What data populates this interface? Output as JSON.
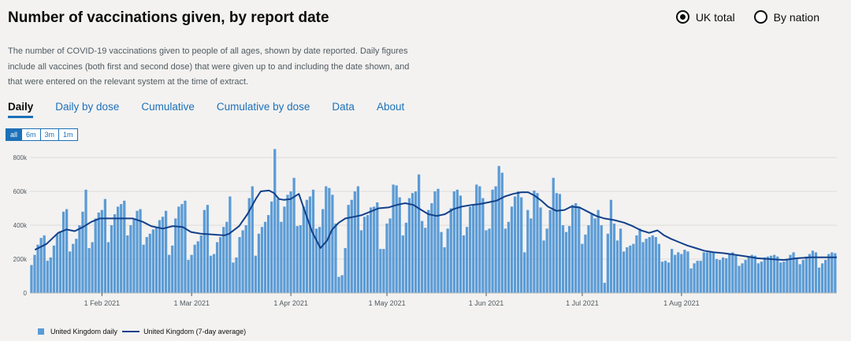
{
  "title": "Number of vaccinations given, by report date",
  "radios": [
    {
      "label": "UK total",
      "checked": true
    },
    {
      "label": "By nation",
      "checked": false
    }
  ],
  "description": "The number of COVID-19 vaccinations given to people of all ages, shown by date reported. Daily figures include all vaccines (both first and second dose) that were given up to and including the date shown, and that were entered on the relevant system at the time of extract.",
  "tabs": [
    {
      "label": "Daily",
      "active": true
    },
    {
      "label": "Daily by dose",
      "active": false
    },
    {
      "label": "Cumulative",
      "active": false
    },
    {
      "label": "Cumulative by dose",
      "active": false
    },
    {
      "label": "Data",
      "active": false
    },
    {
      "label": "About",
      "active": false
    }
  ],
  "ranges": [
    {
      "label": "all",
      "active": true
    },
    {
      "label": "6m",
      "active": false
    },
    {
      "label": "3m",
      "active": false
    },
    {
      "label": "1m",
      "active": false
    }
  ],
  "colors": {
    "bar": "#5b9bd5",
    "line": "#12408a",
    "accent": "#1d70b8"
  },
  "chart_data": {
    "type": "bar",
    "x_start": "2021-01-10",
    "x_ticks": [
      "1 Feb 2021",
      "1 Mar 2021",
      "1 Apr 2021",
      "1 May 2021",
      "1 Jun 2021",
      "1 Jul 2021",
      "1 Aug 2021"
    ],
    "y_ticks": [
      "0",
      "200k",
      "400k",
      "600k",
      "800k"
    ],
    "ylim": [
      0,
      800000
    ],
    "grid": true,
    "legend": "bottom-left",
    "series": [
      {
        "name": "United Kingdom daily",
        "type": "bar",
        "values": [
          165000,
          225000,
          285000,
          325000,
          340000,
          190000,
          210000,
          280000,
          350000,
          365000,
          480000,
          495000,
          245000,
          290000,
          320000,
          400000,
          480000,
          610000,
          265000,
          300000,
          440000,
          475000,
          490000,
          555000,
          300000,
          400000,
          465000,
          510000,
          525000,
          545000,
          340000,
          400000,
          440000,
          485000,
          495000,
          285000,
          330000,
          350000,
          375000,
          385000,
          430000,
          450000,
          485000,
          225000,
          280000,
          440000,
          510000,
          525000,
          545000,
          195000,
          225000,
          285000,
          305000,
          340000,
          490000,
          520000,
          220000,
          230000,
          300000,
          330000,
          390000,
          420000,
          570000,
          180000,
          210000,
          330000,
          370000,
          400000,
          560000,
          630000,
          220000,
          350000,
          390000,
          420000,
          460000,
          540000,
          850000,
          555000,
          420000,
          510000,
          580000,
          600000,
          680000,
          395000,
          400000,
          510000,
          550000,
          570000,
          610000,
          380000,
          390000,
          495000,
          630000,
          620000,
          580000,
          410000,
          95000,
          105000,
          265000,
          520000,
          550000,
          600000,
          630000,
          370000,
          450000,
          460000,
          505000,
          510000,
          535000,
          260000,
          260000,
          410000,
          440000,
          640000,
          635000,
          565000,
          340000,
          415000,
          560000,
          590000,
          600000,
          700000,
          425000,
          385000,
          490000,
          530000,
          600000,
          615000,
          360000,
          270000,
          380000,
          500000,
          600000,
          610000,
          575000,
          340000,
          390000,
          510000,
          520000,
          640000,
          630000,
          560000,
          370000,
          380000,
          610000,
          630000,
          750000,
          710000,
          380000,
          420000,
          510000,
          570000,
          600000,
          565000,
          240000,
          490000,
          440000,
          605000,
          590000,
          505000,
          310000,
          380000,
          490000,
          680000,
          590000,
          585000,
          400000,
          360000,
          395000,
          520000,
          530000,
          510000,
          290000,
          345000,
          400000,
          470000,
          440000,
          490000,
          400000,
          60000,
          350000,
          550000,
          410000,
          310000,
          380000,
          245000,
          270000,
          280000,
          290000,
          340000,
          380000,
          300000,
          320000,
          330000,
          340000,
          330000,
          290000,
          185000,
          190000,
          180000,
          260000,
          225000,
          240000,
          230000,
          255000,
          245000,
          145000,
          175000,
          190000,
          190000,
          240000,
          240000,
          245000,
          240000,
          200000,
          195000,
          210000,
          205000,
          230000,
          240000,
          220000,
          160000,
          175000,
          195000,
          215000,
          225000,
          220000,
          175000,
          185000,
          210000,
          215000,
          220000,
          225000,
          215000,
          180000,
          185000,
          200000,
          225000,
          240000,
          205000,
          170000,
          195000,
          215000,
          230000,
          250000,
          240000,
          150000,
          175000,
          195000,
          230000,
          240000,
          235000
        ]
      },
      {
        "name": "United Kingdom (7-day average)",
        "type": "line",
        "points": [
          [
            3,
            255000
          ],
          [
            10,
            290000
          ],
          [
            17,
            355000
          ],
          [
            22,
            375000
          ],
          [
            27,
            365000
          ],
          [
            32,
            390000
          ],
          [
            37,
            420000
          ],
          [
            42,
            440000
          ],
          [
            48,
            440000
          ],
          [
            55,
            440000
          ],
          [
            62,
            440000
          ],
          [
            68,
            420000
          ],
          [
            73,
            395000
          ],
          [
            80,
            380000
          ],
          [
            86,
            395000
          ],
          [
            92,
            390000
          ],
          [
            97,
            360000
          ],
          [
            103,
            350000
          ],
          [
            110,
            345000
          ],
          [
            117,
            340000
          ],
          [
            120,
            350000
          ],
          [
            126,
            395000
          ],
          [
            131,
            465000
          ],
          [
            136,
            555000
          ],
          [
            139,
            600000
          ],
          [
            144,
            605000
          ],
          [
            147,
            590000
          ],
          [
            150,
            555000
          ],
          [
            153,
            550000
          ],
          [
            157,
            555000
          ],
          [
            162,
            585000
          ],
          [
            166,
            470000
          ],
          [
            170,
            360000
          ],
          [
            175,
            265000
          ],
          [
            179,
            310000
          ],
          [
            182,
            375000
          ],
          [
            186,
            415000
          ],
          [
            190,
            440000
          ],
          [
            195,
            450000
          ],
          [
            200,
            460000
          ],
          [
            205,
            480000
          ],
          [
            210,
            500000
          ],
          [
            216,
            505000
          ],
          [
            221,
            520000
          ],
          [
            226,
            530000
          ],
          [
            231,
            520000
          ],
          [
            235,
            495000
          ],
          [
            240,
            465000
          ],
          [
            245,
            455000
          ],
          [
            250,
            465000
          ],
          [
            255,
            495000
          ],
          [
            260,
            510000
          ],
          [
            266,
            520000
          ],
          [
            271,
            525000
          ],
          [
            276,
            535000
          ],
          [
            281,
            545000
          ],
          [
            286,
            570000
          ],
          [
            291,
            585000
          ],
          [
            296,
            595000
          ],
          [
            300,
            595000
          ],
          [
            304,
            575000
          ],
          [
            308,
            545000
          ],
          [
            312,
            510000
          ],
          [
            317,
            485000
          ],
          [
            322,
            490000
          ],
          [
            326,
            510000
          ],
          [
            331,
            505000
          ],
          [
            336,
            480000
          ],
          [
            341,
            455000
          ],
          [
            346,
            440000
          ],
          [
            352,
            430000
          ],
          [
            358,
            415000
          ],
          [
            363,
            395000
          ],
          [
            368,
            370000
          ],
          [
            373,
            355000
          ],
          [
            378,
            370000
          ],
          [
            382,
            340000
          ],
          [
            386,
            320000
          ],
          [
            391,
            300000
          ],
          [
            396,
            280000
          ],
          [
            401,
            265000
          ],
          [
            406,
            250000
          ],
          [
            412,
            240000
          ],
          [
            418,
            235000
          ],
          [
            425,
            225000
          ],
          [
            432,
            215000
          ],
          [
            438,
            205000
          ],
          [
            446,
            200000
          ],
          [
            454,
            195000
          ],
          [
            462,
            205000
          ],
          [
            470,
            210000
          ],
          [
            478,
            210000
          ],
          [
            486,
            210000
          ]
        ]
      }
    ]
  },
  "legend_items": [
    "United Kingdom daily",
    "United Kingdom (7-day average)"
  ]
}
